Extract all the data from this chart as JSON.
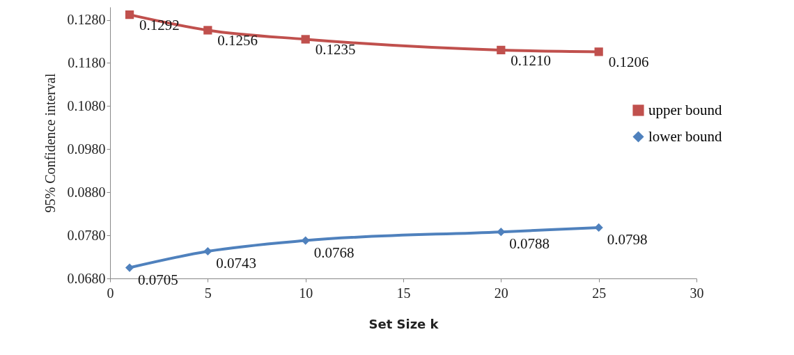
{
  "chart_data": {
    "type": "line",
    "xlabel": "Set Size k",
    "ylabel": "95% Confidence interval",
    "x": [
      1,
      5,
      10,
      20,
      25
    ],
    "series": [
      {
        "name": "upper bound",
        "color": "#c0504d",
        "marker": "square",
        "values": [
          0.1292,
          0.1256,
          0.1235,
          0.121,
          0.1206
        ],
        "value_labels": [
          "0.1292",
          "0.1256",
          "0.1235",
          "0.1210",
          "0.1206"
        ]
      },
      {
        "name": "lower bound",
        "color": "#4f81bd",
        "marker": "diamond",
        "values": [
          0.0705,
          0.0743,
          0.0768,
          0.0788,
          0.0798
        ],
        "value_labels": [
          "0.0705",
          "0.0743",
          "0.0768",
          "0.0788",
          "0.0798"
        ]
      }
    ],
    "xlim": [
      0,
      30
    ],
    "xticks": [
      0,
      5,
      10,
      15,
      20,
      25,
      30
    ],
    "ylim": [
      0.068,
      0.131
    ],
    "yticks": [
      {
        "value": 0.068,
        "label": "0.0680"
      },
      {
        "value": 0.078,
        "label": "0.0780"
      },
      {
        "value": 0.088,
        "label": "0.0880"
      },
      {
        "value": 0.098,
        "label": "0.0980"
      },
      {
        "value": 0.108,
        "label": "0.1080"
      },
      {
        "value": 0.118,
        "label": "0.1180"
      },
      {
        "value": 0.128,
        "label": "0.1280"
      }
    ],
    "grid": false,
    "legend": "right",
    "line_style": "solid"
  }
}
